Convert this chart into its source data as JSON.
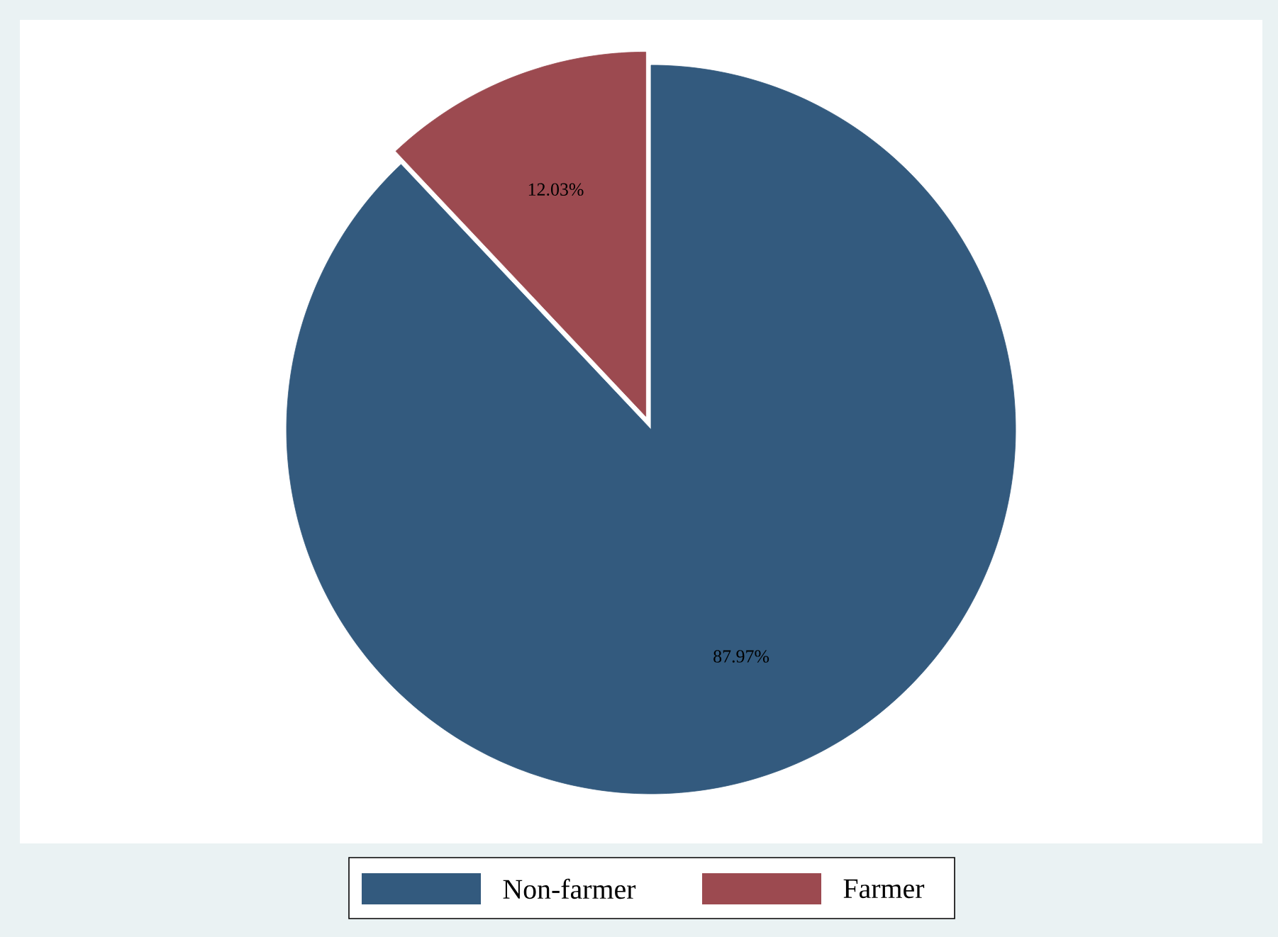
{
  "chart_data": {
    "type": "pie",
    "categories": [
      "Non-farmer",
      "Farmer"
    ],
    "values": [
      87.97,
      12.03
    ],
    "colors": [
      "#335a7e",
      "#9c4a50"
    ],
    "value_labels": [
      "87.97%",
      "12.03%"
    ],
    "legend": "bottom"
  }
}
